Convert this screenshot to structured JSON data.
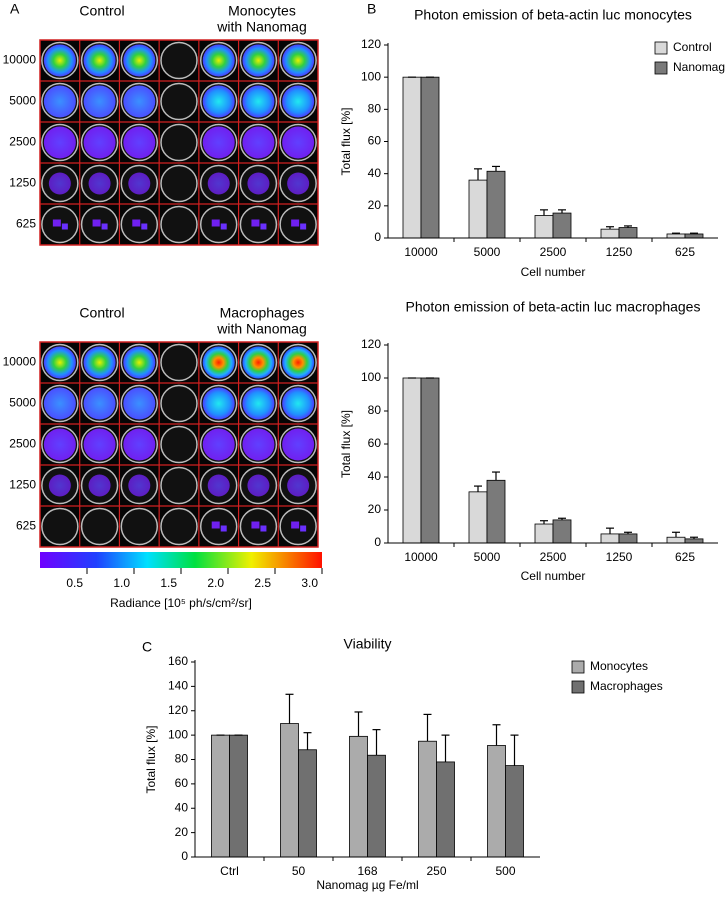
{
  "panel_labels": [
    "A",
    "B",
    "C"
  ],
  "plates": [
    {
      "headers": [
        "Control",
        "Monocytes",
        "with Nanomag"
      ],
      "row_labels": [
        "10000",
        "5000",
        "2500",
        "1250",
        "625"
      ]
    },
    {
      "headers": [
        "Control",
        "Macrophages",
        "with Nanomag"
      ],
      "row_labels": [
        "10000",
        "5000",
        "2500",
        "1250",
        "625"
      ]
    }
  ],
  "colorbar": {
    "label": "Radiance [10⁵ ph/s/cm²/sr]",
    "lim": [
      0,
      3
    ],
    "ticks": [
      0.5,
      {
        "value": 1,
        "label": "1.0"
      },
      1.5,
      {
        "value": 2,
        "label": "2.0"
      },
      2.5,
      {
        "value": 3,
        "label": "3.0"
      }
    ]
  },
  "chart_data": [
    {
      "type": "bar",
      "title": "Photon emission of beta-actin luc monocytes",
      "x_label": "Cell number",
      "y_label": "Total flux [%]",
      "categories": [
        "10000",
        "5000",
        "2500",
        "1250",
        "625"
      ],
      "ylim": [
        0,
        120
      ],
      "yticks": [
        0,
        20,
        40,
        60,
        80,
        100,
        120
      ],
      "legend": "upper right",
      "series": [
        {
          "name": "Control",
          "color": "#d9d9d9",
          "values": [
            100,
            36,
            14,
            5.5,
            2.5
          ],
          "errors": [
            0,
            7,
            3.5,
            1.5,
            0.5
          ]
        },
        {
          "name": "Nanomag",
          "color": "#7a7a7a",
          "values": [
            100,
            41.5,
            15.5,
            6.5,
            2.5
          ],
          "errors": [
            0,
            3,
            2,
            1,
            0.5
          ]
        }
      ]
    },
    {
      "type": "bar",
      "title": "Photon emission of beta-actin luc macrophages",
      "x_label": "Cell number",
      "y_label": "Total flux [%]",
      "categories": [
        "10000",
        "5000",
        "2500",
        "1250",
        "625"
      ],
      "ylim": [
        0,
        120
      ],
      "yticks": [
        0,
        20,
        40,
        60,
        80,
        100,
        120
      ],
      "series": [
        {
          "color": "#d9d9d9",
          "values": [
            100,
            31,
            11.5,
            5.5,
            3.5
          ],
          "errors": [
            0,
            3.5,
            2,
            3.5,
            3
          ]
        },
        {
          "color": "#7a7a7a",
          "values": [
            100,
            38,
            14,
            5.5,
            2.5
          ],
          "errors": [
            0,
            5,
            1,
            1,
            1
          ]
        }
      ]
    },
    {
      "type": "bar",
      "title": "Viability",
      "x_label": "Nanomag µg Fe/ml",
      "y_label": "Total flux [%]",
      "categories": [
        "Ctrl",
        "50",
        "168",
        "250",
        "500"
      ],
      "ylim": [
        0,
        160
      ],
      "yticks": [
        0,
        20,
        40,
        60,
        80,
        100,
        120,
        140,
        160
      ],
      "legend": "right",
      "series": [
        {
          "name": "Monocytes",
          "color": "#ababab",
          "values": [
            100,
            109.5,
            99,
            95,
            91.5
          ],
          "errors": [
            0,
            24,
            20,
            22,
            17
          ]
        },
        {
          "name": "Macrophages",
          "color": "#707070",
          "values": [
            100,
            88,
            83.5,
            78,
            75
          ],
          "errors": [
            0,
            14,
            21,
            22,
            25
          ]
        }
      ]
    }
  ]
}
